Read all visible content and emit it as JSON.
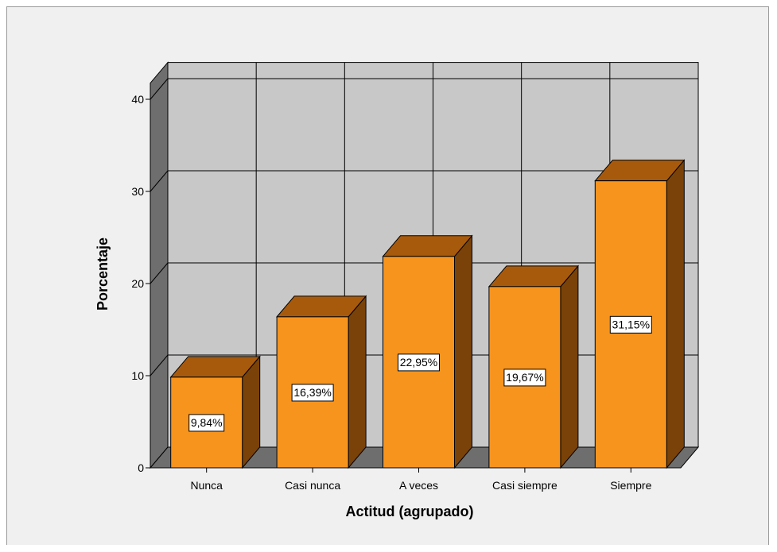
{
  "chart_data": {
    "type": "bar",
    "style": "3d",
    "categories": [
      "Nunca",
      "Casi nunca",
      "A veces",
      "Casi siempre",
      "Siempre"
    ],
    "values": [
      9.84,
      16.39,
      22.95,
      19.67,
      31.15
    ],
    "data_labels": [
      "9,84%",
      "16,39%",
      "22,95%",
      "19,67%",
      "31,15%"
    ],
    "xlabel": "Actitud (agrupado)",
    "ylabel": "Porcentaje",
    "ylim": [
      0,
      40
    ],
    "yticks": [
      "0",
      "10",
      "20",
      "30",
      "40"
    ],
    "grid": true,
    "colors": {
      "bar_front": "#f7941d",
      "bar_top": "#a85a0c",
      "bar_side": "#7a4208",
      "wall_back": "#c8c8c8",
      "wall_side": "#6e6e6e",
      "floor": "#6e6e6e",
      "background": "#f0f0f0"
    }
  }
}
